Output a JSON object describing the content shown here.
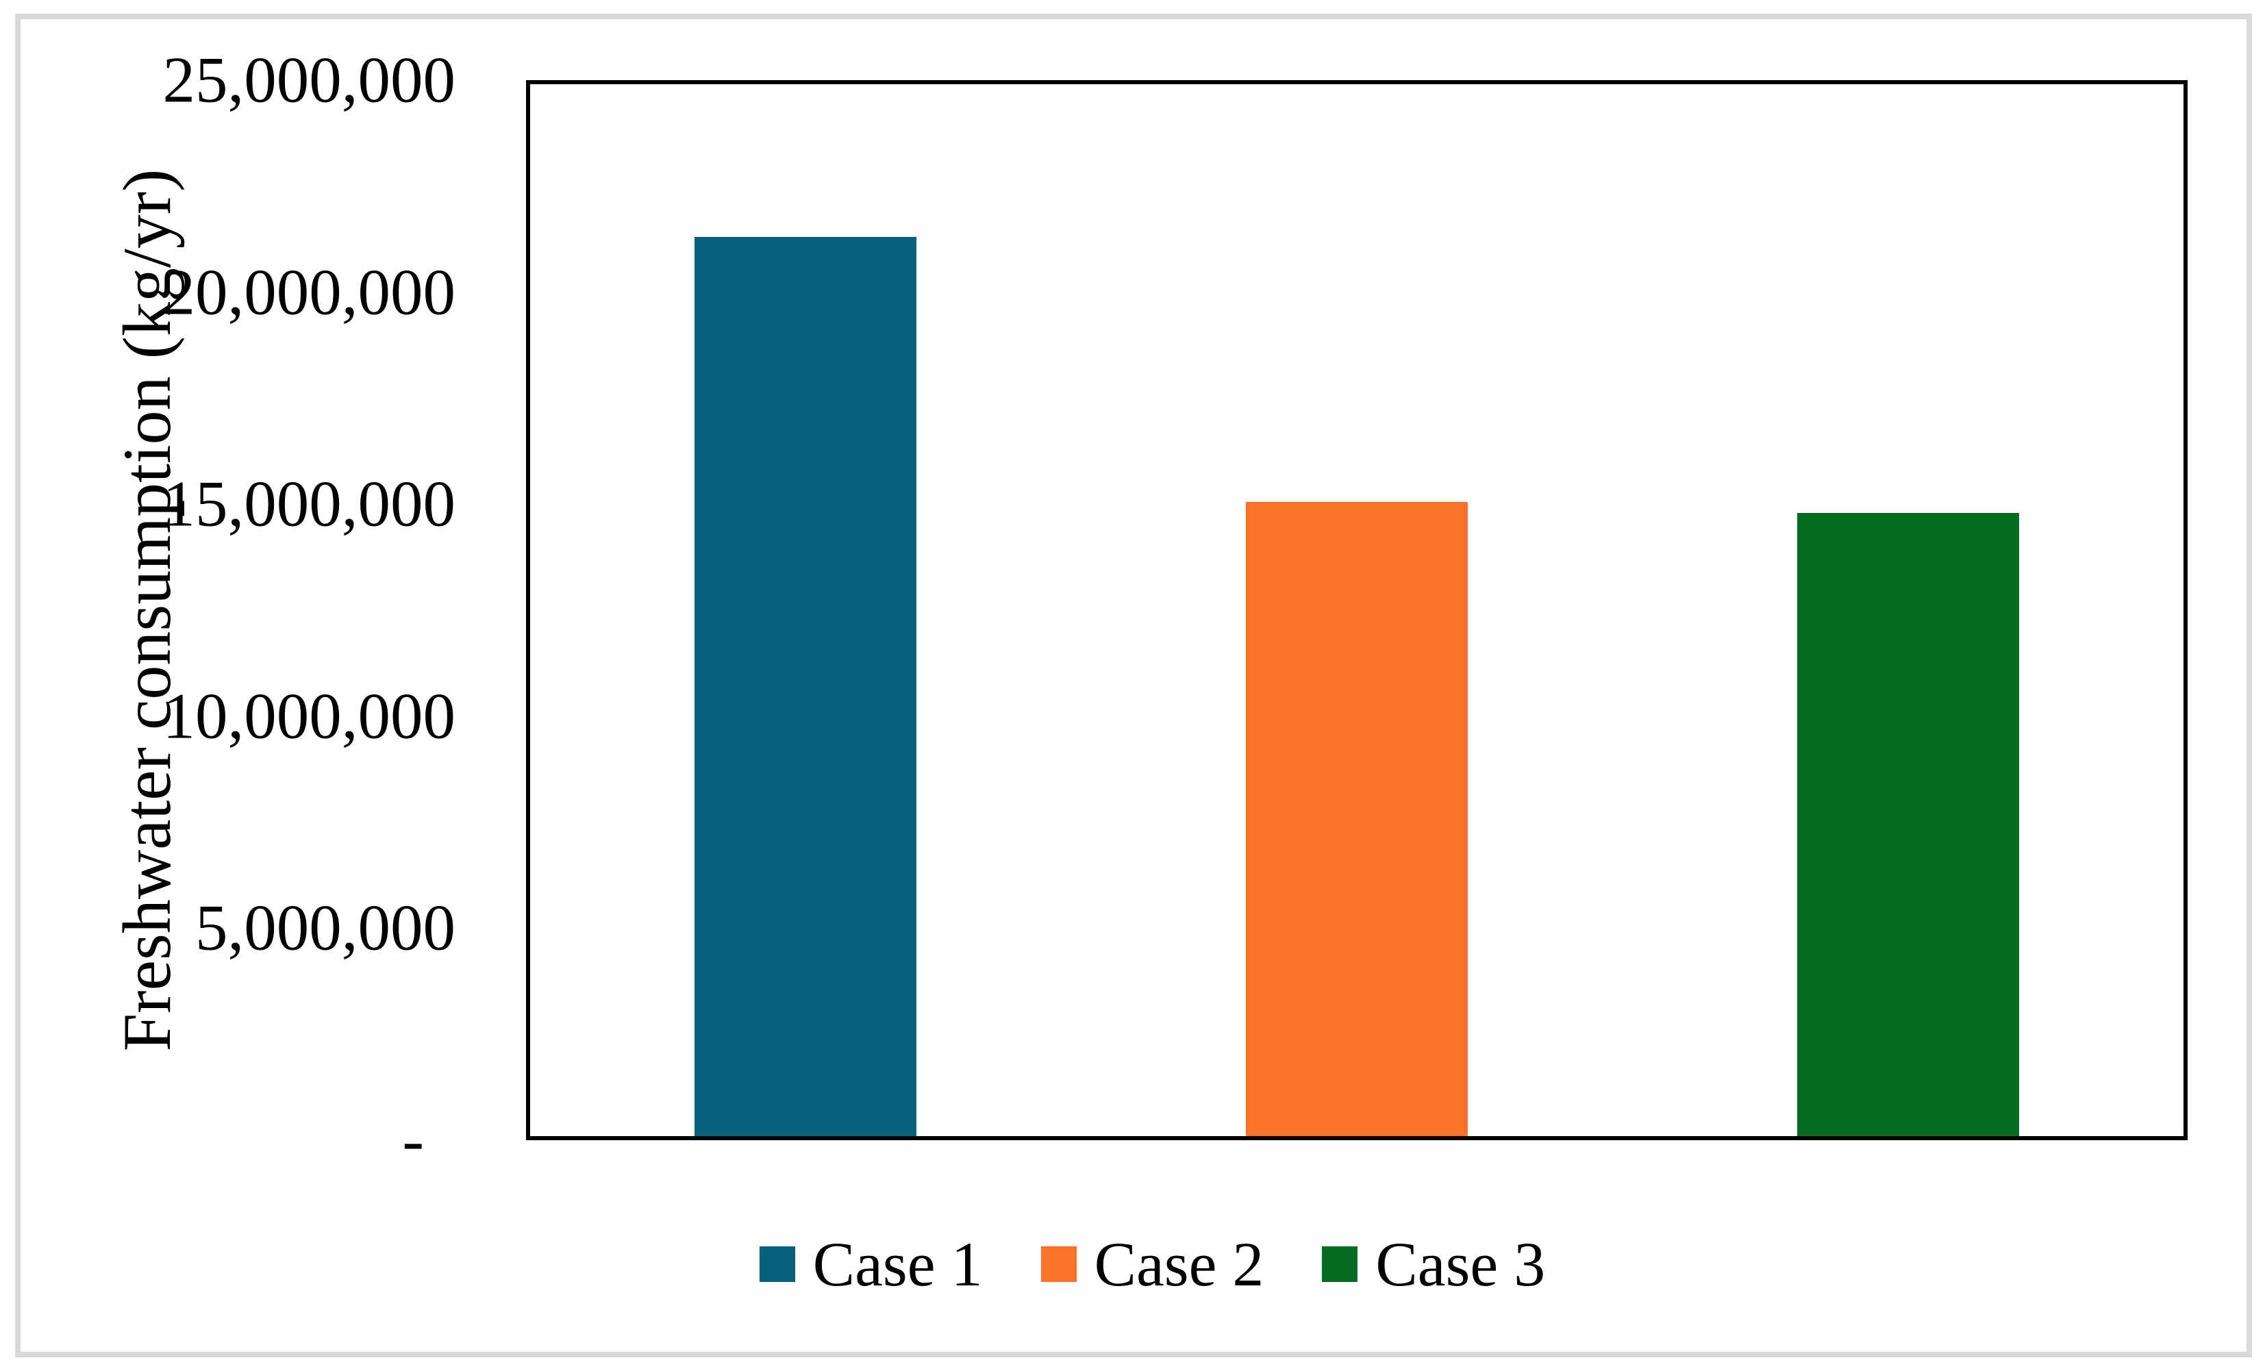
{
  "figure": {
    "background_color": "#ffffff",
    "frame_color": "#d9d9d9",
    "axis_color": "#000000"
  },
  "chart_data": {
    "type": "bar",
    "title": "",
    "xlabel": "",
    "ylabel": "Freshwater consumption (kg/yr)",
    "categories": [
      "Case 1",
      "Case 2",
      "Case 3"
    ],
    "values": [
      21200000,
      14950000,
      14700000
    ],
    "ylim": [
      0,
      25000000
    ],
    "ytick_interval": 5000000,
    "ytick_labels": [
      "-",
      "5,000,000",
      "10,000,000",
      "15,000,000",
      "20,000,000",
      "25,000,000"
    ],
    "grid": false,
    "legend_position": "bottom-center",
    "legend": [
      {
        "label": "Case 1",
        "color": "#06617f"
      },
      {
        "label": "Case 2",
        "color": "#fb7428"
      },
      {
        "label": "Case 3",
        "color": "#066c1e"
      }
    ]
  }
}
